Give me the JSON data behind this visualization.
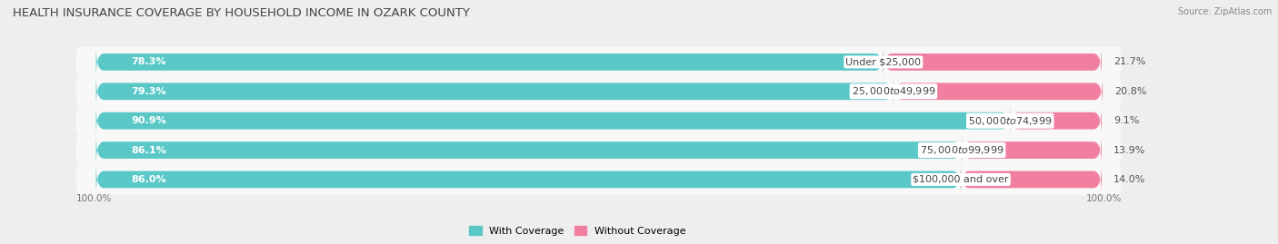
{
  "title": "HEALTH INSURANCE COVERAGE BY HOUSEHOLD INCOME IN OZARK COUNTY",
  "source": "Source: ZipAtlas.com",
  "categories": [
    "Under $25,000",
    "$25,000 to $49,999",
    "$50,000 to $74,999",
    "$75,000 to $99,999",
    "$100,000 and over"
  ],
  "with_coverage": [
    78.3,
    79.3,
    90.9,
    86.1,
    86.0
  ],
  "without_coverage": [
    21.7,
    20.8,
    9.1,
    13.9,
    14.0
  ],
  "color_with": "#5bc8c8",
  "color_without": "#f07fa0",
  "bar_height": 0.58,
  "background_color": "#eeeeee",
  "bar_bg_color": "#f8f8f8",
  "title_fontsize": 9.5,
  "label_fontsize": 8.0,
  "tick_fontsize": 7.5,
  "source_fontsize": 7.0,
  "with_label_color": "#ffffff",
  "without_label_color": "#555555",
  "category_label_color": "#444444",
  "xlim_left": -5,
  "xlim_right": 130,
  "total_width": 100
}
